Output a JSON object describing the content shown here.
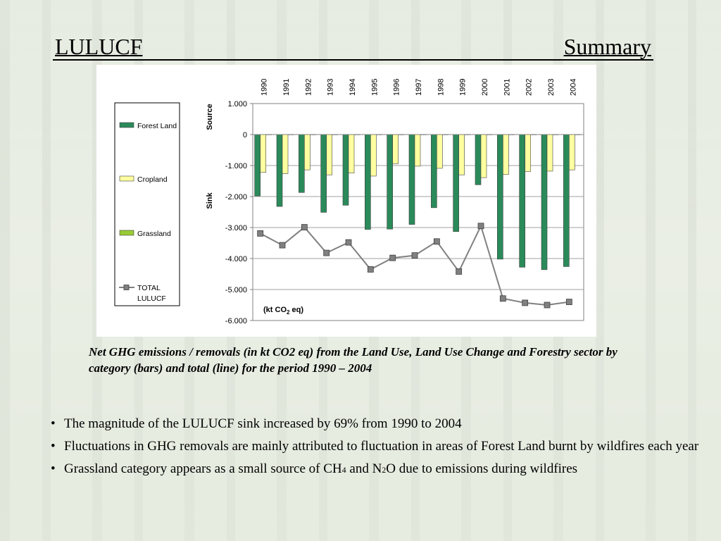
{
  "header": {
    "title_left": "LULUCF",
    "title_right": "Summary"
  },
  "chart_data": {
    "type": "bar",
    "categories": [
      "1990",
      "1991",
      "1992",
      "1993",
      "1994",
      "1995",
      "1996",
      "1997",
      "1998",
      "1999",
      "2000",
      "2001",
      "2002",
      "2003",
      "2004"
    ],
    "series": [
      {
        "name": "Forest Land",
        "type": "bar",
        "color": "#2a8a5a",
        "values": [
          -1980,
          -2320,
          -1870,
          -2510,
          -2280,
          -3060,
          -3050,
          -2900,
          -2360,
          -3130,
          -1620,
          -4020,
          -4280,
          -4360,
          -4260
        ]
      },
      {
        "name": "Cropland",
        "type": "bar",
        "color": "#ffffa0",
        "values": [
          -1220,
          -1260,
          -1140,
          -1300,
          -1240,
          -1340,
          -940,
          -1020,
          -1090,
          -1300,
          -1390,
          -1290,
          -1190,
          -1180,
          -1140
        ]
      },
      {
        "name": "Grassland",
        "type": "bar",
        "color": "#99cc33",
        "values": [
          5,
          5,
          5,
          5,
          5,
          5,
          5,
          5,
          5,
          5,
          5,
          5,
          5,
          5,
          5
        ]
      },
      {
        "name": "TOTAL LULUCF",
        "type": "line",
        "color": "#808080",
        "values": [
          -3190,
          -3570,
          -2990,
          -3820,
          -3480,
          -4350,
          -3980,
          -3900,
          -3450,
          -4420,
          -2950,
          -5290,
          -5430,
          -5500,
          -5400
        ]
      }
    ],
    "yticks": [
      "1.000",
      "0",
      "-1.000",
      "-2.000",
      "-3.000",
      "-4.000",
      "-5.000",
      "-6.000"
    ],
    "ylim": [
      -6000,
      1000
    ],
    "y_label_top": "Source",
    "y_label_bottom": "Sink",
    "unit_label_main": "(kt CO",
    "unit_label_sub": "2",
    "unit_label_tail": " eq)",
    "grid": true,
    "legend_position": "left"
  },
  "caption": "Net GHG emissions / removals (in kt CO2 eq) from the Land Use, Land Use Change and Forestry sector by category (bars) and total (line) for the period 1990 – 2004",
  "bullets": {
    "b1": "The magnitude of the LULUCF sink increased by 69% from 1990 to 2004",
    "b2": "Fluctuations in GHG removals are mainly attributed to fluctuation in areas of Forest Land burnt by wildfires each year",
    "b3_pre": "Grassland category appears as a small source of CH",
    "b3_sub1": "4",
    "b3_mid": " and N",
    "b3_sub2": "2",
    "b3_post": "O due to emissions during wildfires",
    "bullet_char": "•"
  }
}
